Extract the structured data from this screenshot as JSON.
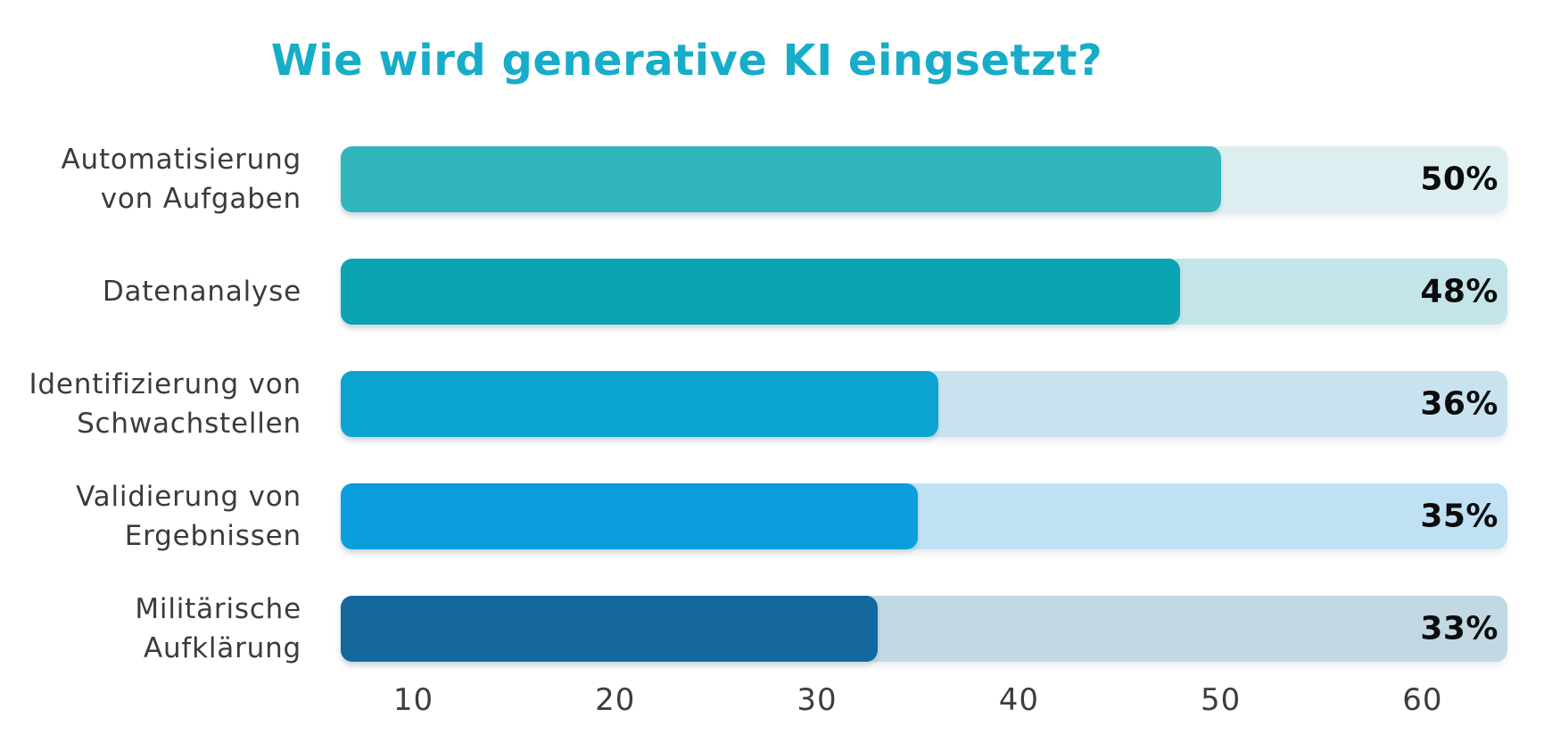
{
  "title": {
    "text": "Wie wird generative KI eingsetzt?",
    "color": "#17adc9"
  },
  "chart_data": {
    "type": "bar",
    "orientation": "horizontal",
    "title": "Wie wird generative KI eingsetzt?",
    "categories": [
      "Automatisierung\nvon Aufgaben",
      "Datenanalyse",
      "Identifizierung von\nSchwachstellen",
      "Validierung von\nErgebnissen",
      "Militärische\nAufklärung"
    ],
    "values": [
      50,
      48,
      36,
      35,
      33
    ],
    "value_labels": [
      "50%",
      "48%",
      "36%",
      "35%",
      "33%"
    ],
    "bar_colors": [
      "#31b5bd",
      "#0aa4b2",
      "#0ba3d0",
      "#0a9edd",
      "#15689d"
    ],
    "track_colors": [
      "#dceef0",
      "#c3e5ea",
      "#c8e3ef",
      "#bfe1f3",
      "#c2d8e2"
    ],
    "x_ticks": [
      10,
      20,
      30,
      40,
      50,
      60
    ],
    "xlim": [
      6.4,
      64.2
    ],
    "xlabel": "",
    "ylabel": "",
    "grid": false,
    "legend": null,
    "value_label_color": "#0c0c0c",
    "tick_label_color": "#3d3d3d"
  }
}
